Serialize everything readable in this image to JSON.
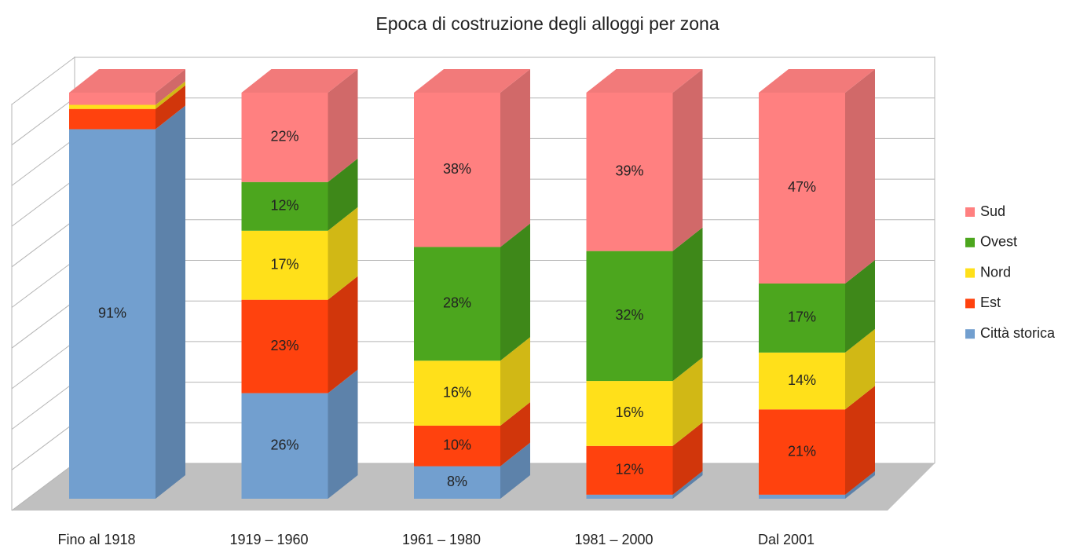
{
  "chart_data": {
    "type": "bar3d_stacked",
    "title": "Epoca di costruzione degli alloggi per zona",
    "categories": [
      "Fino al 1918",
      "1919 – 1960",
      "1961 – 1980",
      "1981 – 2000",
      "Dal 2001"
    ],
    "series": [
      {
        "name": "Città storica",
        "color": "#729fcf",
        "values": [
          91,
          26,
          8,
          1,
          1
        ],
        "value_labels": [
          "91%",
          "26%",
          "8%",
          null,
          null
        ]
      },
      {
        "name": "Est",
        "color": "#ff420e",
        "values": [
          5,
          23,
          10,
          12,
          21
        ],
        "value_labels": [
          null,
          "23%",
          "10%",
          "12%",
          "21%"
        ]
      },
      {
        "name": "Nord",
        "color": "#ffe01a",
        "values": [
          1,
          17,
          16,
          16,
          14
        ],
        "value_labels": [
          null,
          "17%",
          "16%",
          "16%",
          "14%"
        ]
      },
      {
        "name": "Ovest",
        "color": "#4ca61e",
        "values": [
          0,
          12,
          28,
          32,
          17
        ],
        "value_labels": [
          null,
          "12%",
          "28%",
          "32%",
          "17%"
        ]
      },
      {
        "name": "Sud",
        "color": "#ff8080",
        "values": [
          3,
          22,
          38,
          39,
          47
        ],
        "value_labels": [
          null,
          "22%",
          "38%",
          "39%",
          "47%"
        ]
      }
    ],
    "ylim": [
      0,
      100
    ],
    "yticks": [
      0,
      10,
      20,
      30,
      40,
      50,
      60,
      70,
      80,
      90,
      100
    ],
    "grid": true,
    "legend": "right"
  }
}
